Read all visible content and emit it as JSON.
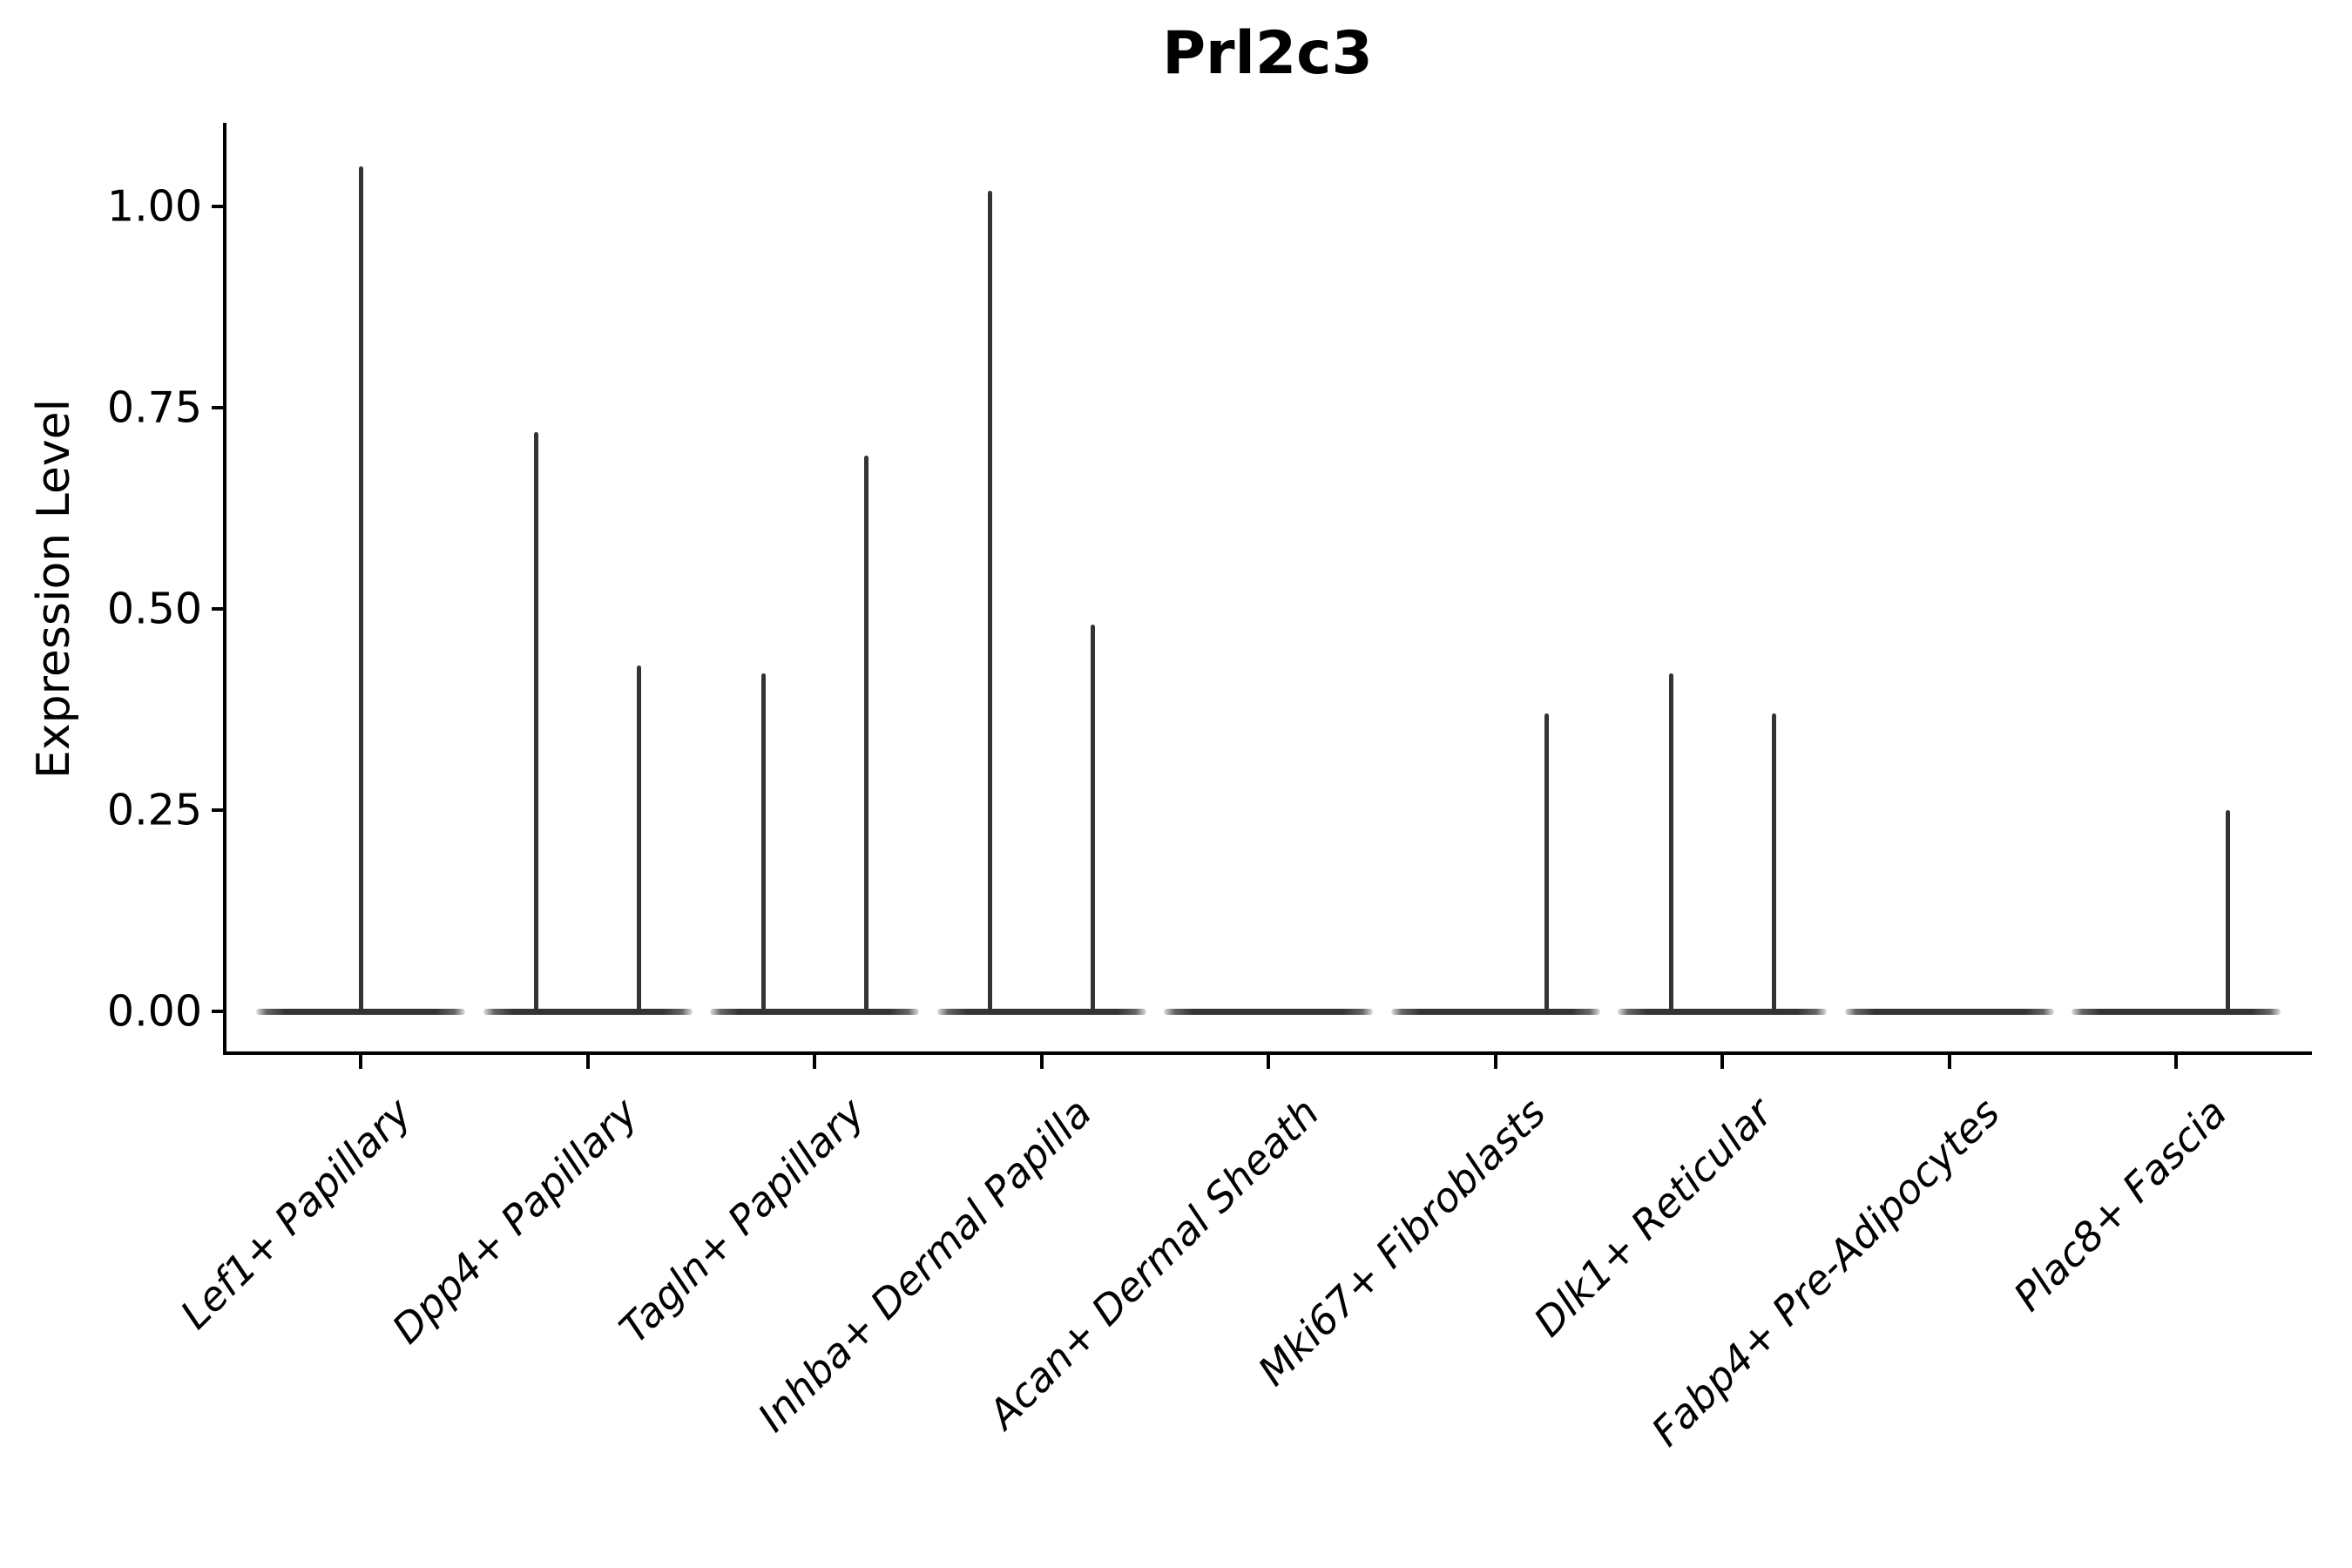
{
  "title": "Prl2c3",
  "y_axis": {
    "label": "Expression Level"
  },
  "chart_data": {
    "type": "violin",
    "title": "Prl2c3",
    "xlabel": "",
    "ylabel": "Expression Level",
    "ylim": [
      0,
      1.1
    ],
    "grid": false,
    "legend": "none",
    "y_ticks": [
      {
        "label": "1.00",
        "value": 1.0
      },
      {
        "label": "0.75",
        "value": 0.75
      },
      {
        "label": "0.50",
        "value": 0.5
      },
      {
        "label": "0.25",
        "value": 0.25
      },
      {
        "label": "0.00",
        "value": 0.0
      }
    ],
    "categories": [
      "Lef1+ Papillary",
      "Dpp4+ Papillary",
      "Tagln+ Papillary",
      "Inhba+ Dermal Papilla",
      "Acan+ Dermal Sheath",
      "Mki67+ Fibroblasts",
      "Dlk1+ Reticular",
      "Fabp4+ Pre-Adipocytes",
      "Plac8+ Fascia"
    ],
    "violins": [
      {
        "category": "Lef1+ Papillary",
        "bulk_density_at": 0,
        "spikes": [
          {
            "offset": "center",
            "peak": 1.05
          }
        ]
      },
      {
        "category": "Dpp4+ Papillary",
        "bulk_density_at": 0,
        "spikes": [
          {
            "offset": "left",
            "peak": 0.72
          },
          {
            "offset": "right",
            "peak": 0.43
          }
        ]
      },
      {
        "category": "Tagln+ Papillary",
        "bulk_density_at": 0,
        "spikes": [
          {
            "offset": "left",
            "peak": 0.42
          },
          {
            "offset": "right",
            "peak": 0.69
          }
        ]
      },
      {
        "category": "Inhba+ Dermal Papilla",
        "bulk_density_at": 0,
        "spikes": [
          {
            "offset": "left",
            "peak": 1.02
          },
          {
            "offset": "right",
            "peak": 0.48
          }
        ]
      },
      {
        "category": "Acan+ Dermal Sheath",
        "bulk_density_at": 0,
        "spikes": []
      },
      {
        "category": "Mki67+ Fibroblasts",
        "bulk_density_at": 0,
        "spikes": [
          {
            "offset": "right",
            "peak": 0.37
          }
        ]
      },
      {
        "category": "Dlk1+ Reticular",
        "bulk_density_at": 0,
        "spikes": [
          {
            "offset": "left",
            "peak": 0.42
          },
          {
            "offset": "right",
            "peak": 0.37
          }
        ]
      },
      {
        "category": "Fabp4+ Pre-Adipocytes",
        "bulk_density_at": 0,
        "spikes": []
      },
      {
        "category": "Plac8+ Fascia",
        "bulk_density_at": 0,
        "spikes": [
          {
            "offset": "right",
            "peak": 0.25
          }
        ]
      }
    ],
    "colors": {
      "violin_stroke": "#333333",
      "axis": "#000000",
      "text": "#000000",
      "background": "#ffffff"
    }
  }
}
